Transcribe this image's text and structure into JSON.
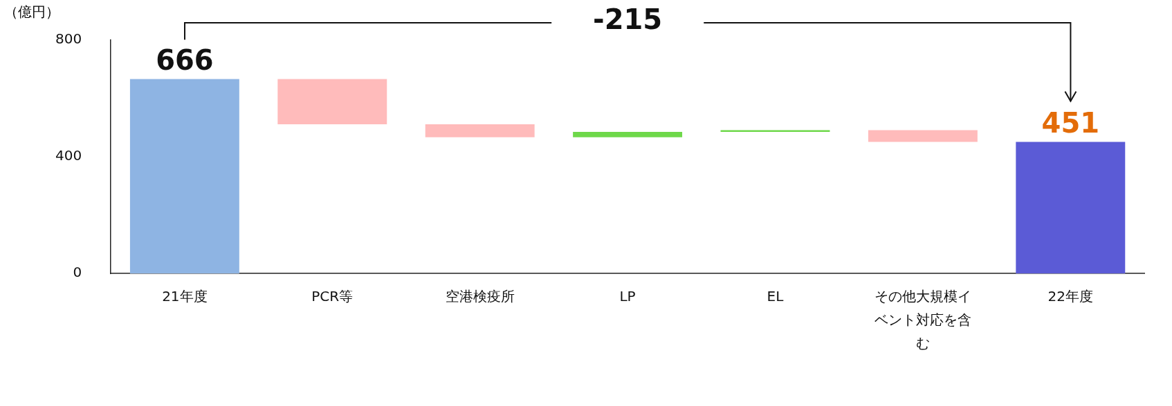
{
  "chart_data": {
    "type": "bar",
    "ylabel": "（億円）",
    "categories": [
      "21年度",
      "PCR等",
      "空港検疫所",
      "LP",
      "EL",
      "その他大規模イベント対応を含む",
      "22年度"
    ],
    "base": [
      0,
      666,
      511,
      467,
      485,
      491,
      0
    ],
    "values": [
      666,
      -155,
      -44,
      18,
      6,
      -40,
      451
    ],
    "colors": [
      "#8eb4e3",
      "#ffbbbb",
      "#ffbbbb",
      "#6ed84a",
      "#6ed84a",
      "#ffbbbb",
      "#5b5bd6"
    ],
    "value_labels": [
      "666",
      null,
      null,
      null,
      null,
      null,
      "451"
    ],
    "annotations": [
      "-215"
    ],
    "ylim": [
      0,
      800
    ],
    "yticks": [
      0,
      400,
      800
    ],
    "grid": false,
    "legend": false
  }
}
